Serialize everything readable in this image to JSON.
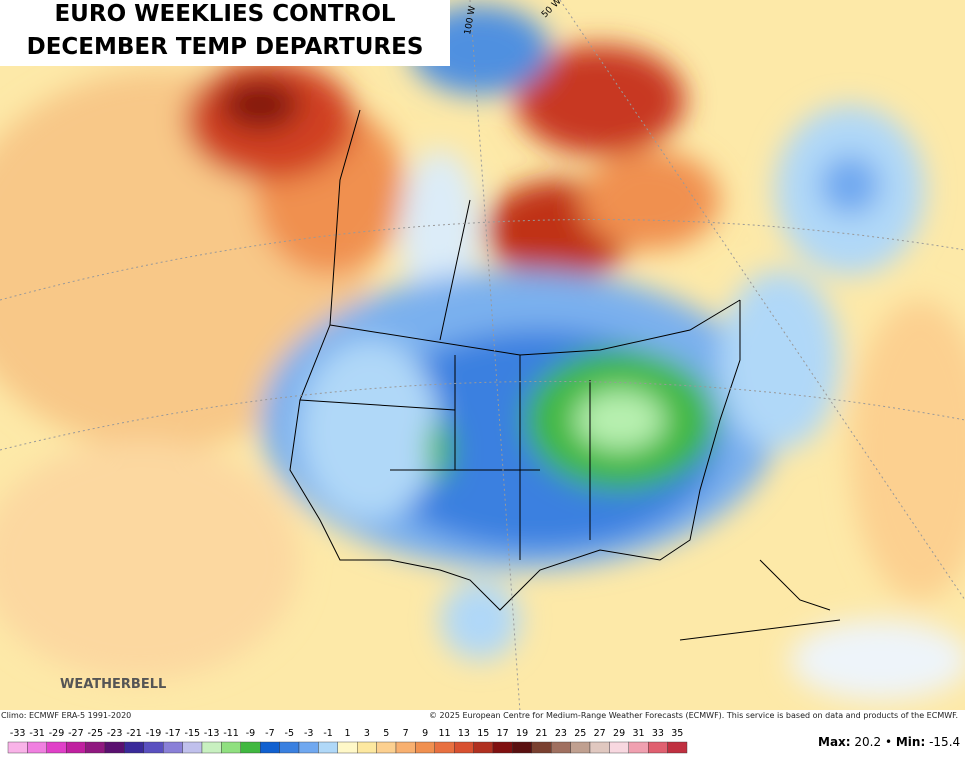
{
  "header": {
    "title_lines": [
      "EURO WEEKLIES CONTROL",
      "DECEMBER TEMP DEPARTURES"
    ]
  },
  "map": {
    "meridian_labels": [
      "100 W",
      "50 W"
    ],
    "watermark": "WEATHERBELL"
  },
  "footer": {
    "climo": "Climo: ECMWF ERA-5 1991-2020",
    "copyright": "© 2025 European Centre for Medium-Range Weather Forecasts (ECMWF). This service is based on data and products of the ECMWF.",
    "max_label": "Max:",
    "max": 20.2,
    "separator": "•",
    "min_label": "Min:",
    "min": -15.4
  },
  "colorbar": {
    "labels": [
      -33,
      -31,
      -29,
      -27,
      -25,
      -23,
      -21,
      -19,
      -17,
      -15,
      -13,
      -11,
      -9,
      -7,
      -5,
      -3,
      -1,
      1,
      3,
      5,
      7,
      9,
      11,
      13,
      15,
      17,
      19,
      21,
      23,
      25,
      27,
      29,
      31,
      33,
      35
    ],
    "colors": [
      "#f9b3e8",
      "#f080e0",
      "#e040c8",
      "#c020a0",
      "#901880",
      "#5a1070",
      "#3a2a9a",
      "#5a50c0",
      "#8a80d8",
      "#c0c0ec",
      "#c8f0c0",
      "#90e080",
      "#40b840",
      "#1060d0",
      "#3a80e0",
      "#70a8f0",
      "#b0d8f8",
      "#fff8c8",
      "#fde8a0",
      "#fcd090",
      "#f8b070",
      "#f09050",
      "#e87040",
      "#d85030",
      "#b03020",
      "#801010",
      "#5a1010",
      "#7a4030",
      "#a07060",
      "#c0a090",
      "#e0c8c0",
      "#f8d8e0",
      "#f0a0b0",
      "#e06070",
      "#c03040"
    ]
  }
}
